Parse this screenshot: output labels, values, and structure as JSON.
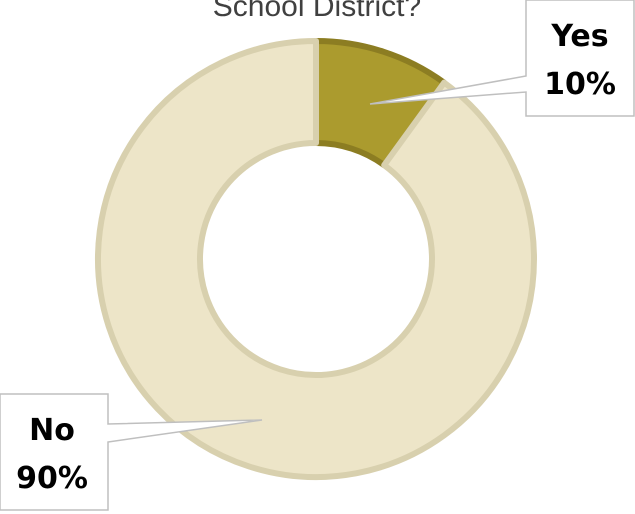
{
  "chart_data": {
    "type": "pie",
    "title": "School District?",
    "categories": [
      "Yes",
      "No"
    ],
    "values": [
      10,
      90
    ],
    "value_labels": [
      "10%",
      "90%"
    ],
    "colors": [
      "#ab9b2e",
      "#ede5c8"
    ],
    "stroke_colors": [
      "#8c7d22",
      "#d8d0ae"
    ],
    "donut": true,
    "legend": "none"
  }
}
